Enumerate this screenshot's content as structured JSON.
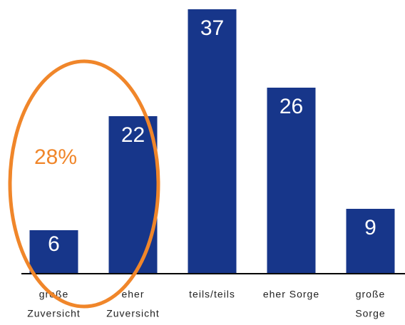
{
  "chart_data": {
    "type": "bar",
    "categories": [
      [
        "große",
        "Zuversicht"
      ],
      [
        "eher",
        "Zuversicht"
      ],
      [
        "teils/teils"
      ],
      [
        "eher Sorge"
      ],
      [
        "große",
        "Sorge"
      ]
    ],
    "values": [
      6,
      22,
      37,
      26,
      9
    ],
    "color": "#17368a",
    "ylim": [
      0,
      38
    ],
    "annotation": "28%",
    "annotation_color": "#f0862a"
  }
}
